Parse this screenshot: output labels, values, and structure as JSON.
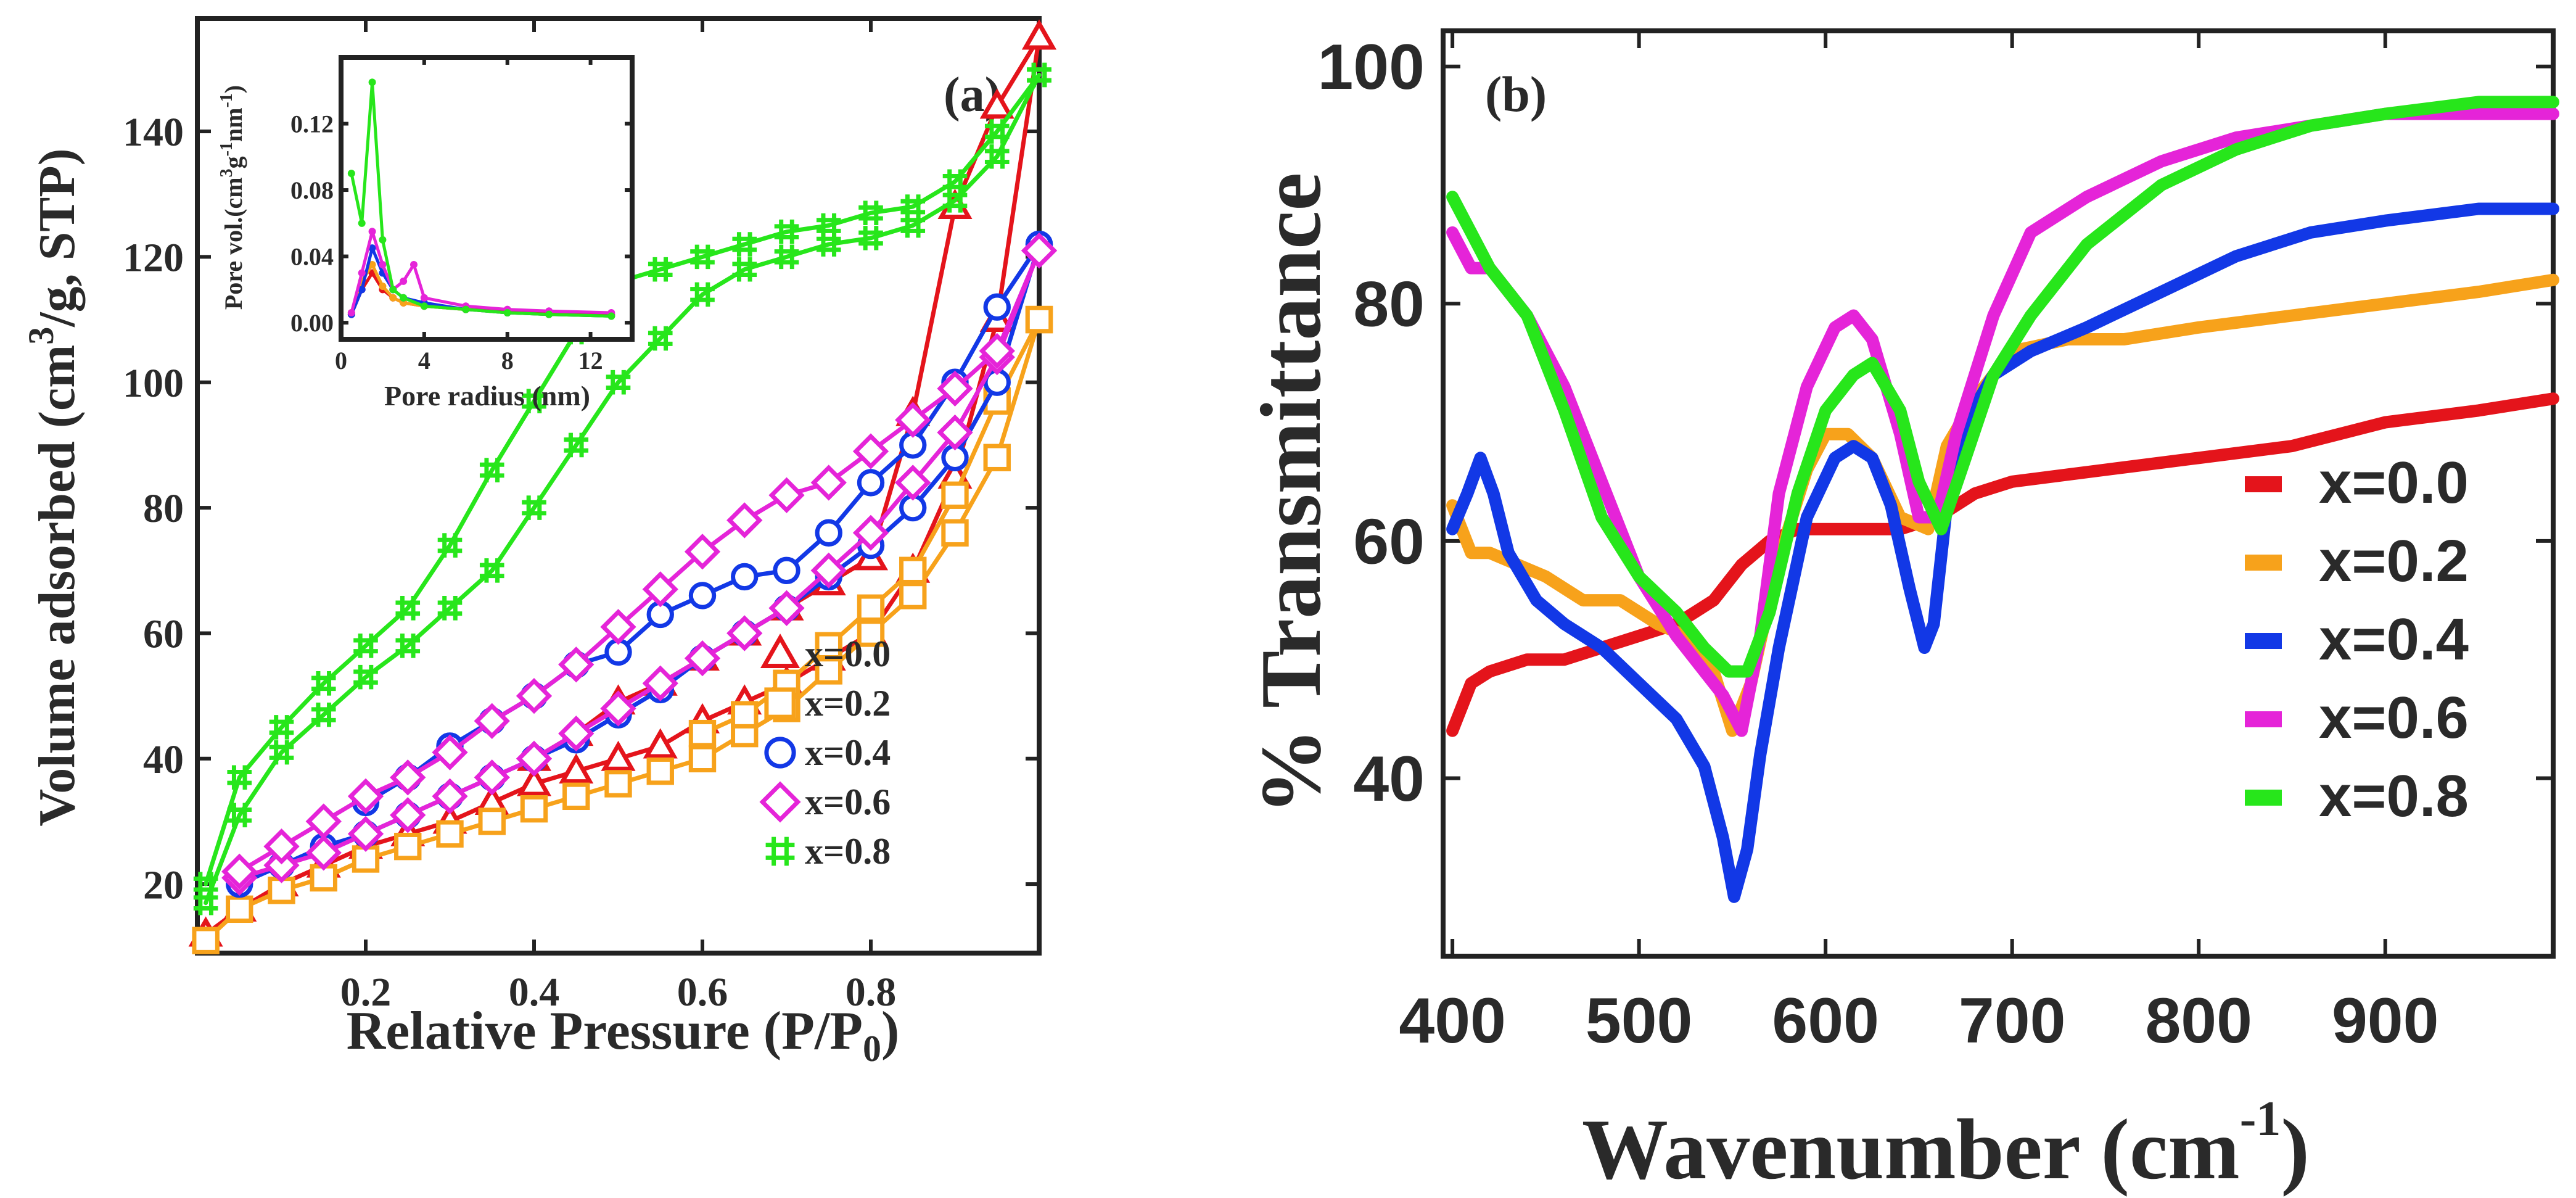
{
  "colors": {
    "x00": "#e4141b",
    "x02": "#f7a21b",
    "x04": "#1238e6",
    "x06": "#e524d8",
    "x08": "#27e61b"
  },
  "chart_data": [
    {
      "panel": "(a)",
      "type": "line",
      "marker_lines": true,
      "xlabel_main": "Relative Pressure (P/P",
      "xlabel_sub": "0",
      "xlabel_end": ")",
      "ylabel_start": "Volume adsorbed (cm",
      "ylabel_sup": "3",
      "ylabel_end": "/g, STP)",
      "xlim": [
        0,
        1.0
      ],
      "ylim": [
        9,
        158
      ],
      "xticks": [
        0.2,
        0.4,
        0.6,
        0.8
      ],
      "xtick_labels": [
        "0.2",
        "0.4",
        "0.6",
        "0.8"
      ],
      "yticks": [
        20,
        40,
        60,
        80,
        100,
        120,
        140
      ],
      "ytick_labels": [
        "20",
        "40",
        "60",
        "80",
        "100",
        "120",
        "140"
      ],
      "legend_position": "bottom-right",
      "series": [
        {
          "name": "x=0.0",
          "color_key": "x00",
          "marker": "triangle",
          "adsorption": {
            "x": [
              0.01,
              0.05,
              0.1,
              0.15,
              0.2,
              0.25,
              0.3,
              0.35,
              0.4,
              0.45,
              0.5,
              0.55,
              0.6,
              0.65,
              0.7,
              0.75,
              0.8,
              0.85,
              0.9,
              0.95,
              1.0
            ],
            "y": [
              12,
              16,
              20,
              23,
              26,
              28,
              30,
              33,
              36,
              38,
              40,
              42,
              46,
              49,
              52,
              56,
              60,
              70,
              85,
              110,
              155
            ]
          },
          "desorption": {
            "x": [
              1.0,
              0.95,
              0.9,
              0.85,
              0.8,
              0.75,
              0.7,
              0.65,
              0.6,
              0.55,
              0.5,
              0.45,
              0.4
            ],
            "y": [
              155,
              144,
              128,
              95,
              72,
              68,
              64,
              60,
              56,
              52,
              49,
              44,
              40
            ]
          }
        },
        {
          "name": "x=0.2",
          "color_key": "x02",
          "marker": "square",
          "adsorption": {
            "x": [
              0.01,
              0.05,
              0.1,
              0.15,
              0.2,
              0.25,
              0.3,
              0.35,
              0.4,
              0.45,
              0.5,
              0.55,
              0.6,
              0.65,
              0.7,
              0.75,
              0.8,
              0.85,
              0.9,
              0.95,
              1.0
            ],
            "y": [
              11,
              16,
              19,
              21,
              24,
              26,
              28,
              30,
              32,
              34,
              36,
              38,
              40,
              44,
              48,
              54,
              60,
              66,
              76,
              88,
              110
            ]
          },
          "desorption": {
            "x": [
              1.0,
              0.95,
              0.9,
              0.85,
              0.8,
              0.75,
              0.7,
              0.65,
              0.6
            ],
            "y": [
              110,
              97,
              82,
              70,
              64,
              58,
              52,
              47,
              44
            ]
          }
        },
        {
          "name": "x=0.4",
          "color_key": "x04",
          "marker": "circle",
          "adsorption": {
            "x": [
              0.05,
              0.1,
              0.15,
              0.2,
              0.25,
              0.3,
              0.35,
              0.4,
              0.45,
              0.5,
              0.55,
              0.6,
              0.65,
              0.7,
              0.75,
              0.8,
              0.85,
              0.9,
              0.95,
              1.0
            ],
            "y": [
              20,
              23,
              26,
              28,
              31,
              34,
              37,
              40,
              43,
              47,
              51,
              56,
              60,
              64,
              69,
              74,
              80,
              88,
              100,
              122
            ]
          },
          "desorption": {
            "x": [
              1.0,
              0.95,
              0.9,
              0.85,
              0.8,
              0.75,
              0.7,
              0.65,
              0.6,
              0.55,
              0.5,
              0.45,
              0.4,
              0.35,
              0.3,
              0.25,
              0.2
            ],
            "y": [
              122,
              112,
              100,
              90,
              84,
              76,
              70,
              69,
              66,
              63,
              57,
              55,
              50,
              46,
              42,
              37,
              33
            ]
          }
        },
        {
          "name": "x=0.6",
          "color_key": "x06",
          "marker": "diamond",
          "adsorption": {
            "x": [
              0.05,
              0.1,
              0.15,
              0.2,
              0.25,
              0.3,
              0.35,
              0.4,
              0.45,
              0.5,
              0.55,
              0.6,
              0.65,
              0.7,
              0.75,
              0.8,
              0.85,
              0.9,
              0.95,
              1.0
            ],
            "y": [
              21,
              23,
              25,
              28,
              31,
              34,
              37,
              40,
              44,
              48,
              52,
              56,
              60,
              64,
              70,
              76,
              84,
              92,
              104,
              121
            ]
          },
          "desorption": {
            "x": [
              1.0,
              0.95,
              0.9,
              0.85,
              0.8,
              0.75,
              0.7,
              0.65,
              0.6,
              0.55,
              0.5,
              0.45,
              0.4,
              0.35,
              0.3,
              0.25,
              0.2,
              0.15,
              0.1,
              0.05
            ],
            "y": [
              121,
              105,
              99,
              94,
              89,
              84,
              82,
              78,
              73,
              67,
              61,
              55,
              50,
              46,
              41,
              37,
              34,
              30,
              26,
              22
            ]
          }
        },
        {
          "name": "x=0.8",
          "color_key": "x08",
          "marker": "hash",
          "adsorption": {
            "x": [
              0.01,
              0.05,
              0.1,
              0.15,
              0.2,
              0.25,
              0.3,
              0.35,
              0.4,
              0.45,
              0.5,
              0.55,
              0.6,
              0.65,
              0.7,
              0.75,
              0.8,
              0.85,
              0.9,
              0.95,
              1.0
            ],
            "y": [
              17,
              31,
              41,
              47,
              53,
              58,
              64,
              70,
              80,
              90,
              100,
              107,
              114,
              118,
              120,
              122,
              123,
              125,
              129,
              136,
              149
            ]
          },
          "desorption": {
            "x": [
              1.0,
              0.95,
              0.9,
              0.85,
              0.8,
              0.75,
              0.7,
              0.65,
              0.6,
              0.55,
              0.5,
              0.45,
              0.4,
              0.35,
              0.3,
              0.25,
              0.2,
              0.15,
              0.1,
              0.05,
              0.01
            ],
            "y": [
              149,
              140,
              132,
              128,
              127,
              125,
              124,
              122,
              120,
              118,
              116,
              108,
              97,
              86,
              74,
              64,
              58,
              52,
              45,
              37,
              20
            ]
          }
        }
      ],
      "inset": {
        "type": "line",
        "xlabel": "Pore radius (nm)",
        "ylabel": "Pore vol.(cm",
        "ylabel_sup1": "3",
        "ylabel_mid": "g",
        "ylabel_sup2": "-1",
        "ylabel_mid2": "nm",
        "ylabel_sup3": "-1",
        "ylabel_end": ")",
        "xlim": [
          0,
          14
        ],
        "ylim": [
          -0.01,
          0.16
        ],
        "xticks": [
          0,
          4,
          8,
          12
        ],
        "xtick_labels": [
          "0",
          "4",
          "8",
          "12"
        ],
        "yticks": [
          0.0,
          0.04,
          0.08,
          0.12
        ],
        "ytick_labels": [
          "0.00",
          "0.04",
          "0.08",
          "0.12"
        ],
        "series": [
          {
            "name": "x=0.0",
            "color_key": "x00",
            "x": [
              0.5,
              1.0,
              1.5,
              2.0,
              2.5,
              3.0,
              4,
              6,
              8,
              10,
              13
            ],
            "y": [
              0.005,
              0.02,
              0.03,
              0.02,
              0.015,
              0.012,
              0.01,
              0.008,
              0.007,
              0.006,
              0.005
            ]
          },
          {
            "name": "x=0.2",
            "color_key": "x02",
            "x": [
              0.5,
              1.0,
              1.5,
              2.0,
              2.5,
              3.0,
              4,
              6,
              8,
              10,
              13
            ],
            "y": [
              0.006,
              0.025,
              0.035,
              0.022,
              0.015,
              0.012,
              0.01,
              0.008,
              0.006,
              0.005,
              0.004
            ]
          },
          {
            "name": "x=0.4",
            "color_key": "x04",
            "x": [
              0.5,
              1.0,
              1.5,
              2.0,
              2.5,
              3.0,
              4,
              6,
              8,
              10,
              13
            ],
            "y": [
              0.005,
              0.02,
              0.045,
              0.03,
              0.02,
              0.015,
              0.012,
              0.008,
              0.006,
              0.005,
              0.004
            ]
          },
          {
            "name": "x=0.6",
            "color_key": "x06",
            "x": [
              0.5,
              1.0,
              1.5,
              2.0,
              2.5,
              3.0,
              3.5,
              4,
              6,
              8,
              10,
              13
            ],
            "y": [
              0.006,
              0.03,
              0.055,
              0.035,
              0.02,
              0.025,
              0.035,
              0.015,
              0.01,
              0.008,
              0.007,
              0.006
            ]
          },
          {
            "name": "x=0.8",
            "color_key": "x08",
            "x": [
              0.5,
              1.0,
              1.5,
              2.0,
              2.5,
              3.0,
              4,
              6,
              8,
              10,
              13
            ],
            "y": [
              0.09,
              0.06,
              0.145,
              0.05,
              0.02,
              0.015,
              0.01,
              0.008,
              0.006,
              0.005,
              0.004
            ]
          }
        ]
      }
    },
    {
      "panel": "(b)",
      "type": "line",
      "xlabel": "Wavenumber (cm",
      "xlabel_sup": "-1",
      "xlabel_end": ")",
      "ylabel": "% Transmittance",
      "xlim": [
        395,
        990
      ],
      "ylim": [
        25,
        103
      ],
      "xticks": [
        400,
        500,
        600,
        700,
        800,
        900
      ],
      "xtick_labels": [
        "400",
        "500",
        "600",
        "700",
        "800",
        "900"
      ],
      "yticks": [
        40,
        60,
        80,
        100
      ],
      "ytick_labels": [
        "40",
        "60",
        "80",
        "100"
      ],
      "legend_position": "right",
      "series": [
        {
          "name": "x=0.0",
          "color_key": "x00",
          "x": [
            400,
            410,
            420,
            440,
            460,
            480,
            500,
            520,
            540,
            555,
            570,
            585,
            600,
            620,
            640,
            660,
            680,
            700,
            750,
            800,
            850,
            900,
            950,
            990
          ],
          "y": [
            44,
            48,
            49,
            50,
            50,
            51,
            52,
            53,
            55,
            58,
            60,
            61,
            61,
            61,
            61,
            62,
            64,
            65,
            66,
            67,
            68,
            70,
            71,
            72
          ]
        },
        {
          "name": "x=0.2",
          "color_key": "x02",
          "x": [
            400,
            410,
            420,
            435,
            450,
            470,
            490,
            510,
            525,
            540,
            550,
            560,
            570,
            580,
            590,
            600,
            612,
            625,
            640,
            655,
            665,
            680,
            700,
            730,
            760,
            800,
            850,
            900,
            950,
            990
          ],
          "y": [
            63,
            59,
            59,
            58,
            57,
            55,
            55,
            53,
            52,
            49,
            44,
            48,
            55,
            61,
            66,
            69,
            69,
            67,
            62,
            61,
            68,
            72,
            76,
            77,
            77,
            78,
            79,
            80,
            81,
            82
          ]
        },
        {
          "name": "x=0.4",
          "color_key": "x04",
          "x": [
            400,
            408,
            415,
            422,
            430,
            445,
            460,
            480,
            500,
            520,
            535,
            545,
            551,
            558,
            565,
            575,
            590,
            605,
            615,
            625,
            635,
            645,
            653,
            658,
            665,
            675,
            690,
            710,
            740,
            780,
            820,
            860,
            900,
            950,
            990
          ],
          "y": [
            61,
            64,
            67,
            64,
            59,
            55,
            53,
            51,
            48,
            45,
            41,
            35,
            30,
            34,
            42,
            51,
            62,
            67,
            68,
            67,
            63,
            56,
            51,
            53,
            63,
            70,
            74,
            76,
            78,
            81,
            84,
            86,
            87,
            88,
            88
          ]
        },
        {
          "name": "x=0.6",
          "color_key": "x06",
          "x": [
            400,
            410,
            420,
            440,
            460,
            480,
            500,
            520,
            535,
            545,
            555,
            565,
            575,
            590,
            605,
            615,
            625,
            640,
            650,
            660,
            670,
            690,
            710,
            740,
            780,
            820,
            860,
            900,
            950,
            990
          ],
          "y": [
            86,
            83,
            83,
            79,
            73,
            65,
            57,
            52,
            49,
            47,
            44,
            52,
            64,
            73,
            78,
            79,
            77,
            69,
            62,
            62,
            69,
            79,
            86,
            89,
            92,
            94,
            95,
            96,
            96,
            96
          ]
        },
        {
          "name": "x=0.8",
          "color_key": "x08",
          "x": [
            400,
            410,
            420,
            440,
            460,
            480,
            500,
            520,
            535,
            548,
            558,
            570,
            585,
            600,
            615,
            625,
            640,
            650,
            662,
            675,
            690,
            710,
            740,
            780,
            820,
            860,
            900,
            950,
            990
          ],
          "y": [
            89,
            86,
            83,
            79,
            71,
            62,
            57,
            54,
            51,
            49,
            49,
            54,
            64,
            71,
            74,
            75,
            71,
            65,
            61,
            67,
            74,
            79,
            85,
            90,
            93,
            95,
            96,
            97,
            97
          ]
        }
      ]
    }
  ]
}
